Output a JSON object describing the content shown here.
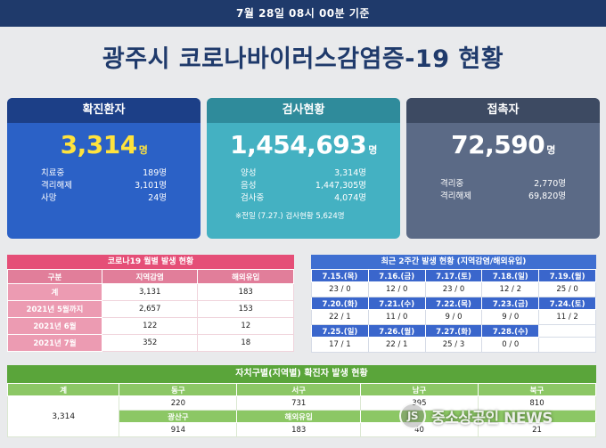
{
  "header": {
    "date_text": "7월 28일 08시 00분 기준",
    "title": "광주시 코로나바이러스감염증-19 현황"
  },
  "cards": {
    "confirmed": {
      "label": "확진환자",
      "value": "3,314",
      "unit": "명",
      "rows": [
        {
          "k": "치료중",
          "v": "189명"
        },
        {
          "k": "격리해제",
          "v": "3,101명"
        },
        {
          "k": "사망",
          "v": "24명"
        }
      ]
    },
    "tests": {
      "label": "검사현황",
      "value": "1,454,693",
      "unit": "명",
      "rows": [
        {
          "k": "양성",
          "v": "3,314명"
        },
        {
          "k": "음성",
          "v": "1,447,305명"
        },
        {
          "k": "검사중",
          "v": "4,074명"
        }
      ],
      "note": "※전일 (7.27.) 검사현황 5,624명"
    },
    "contacts": {
      "label": "접촉자",
      "value": "72,590",
      "unit": "명",
      "rows": [
        {
          "k": "격리중",
          "v": "2,770명"
        },
        {
          "k": "격리해제",
          "v": "69,820명"
        }
      ]
    }
  },
  "monthly": {
    "caption": "코로나19 월별 발생 현황",
    "headers": [
      "구분",
      "지역감염",
      "해외유입"
    ],
    "rows": [
      [
        "계",
        "3,131",
        "183"
      ],
      [
        "2021년 5월까지",
        "2,657",
        "153"
      ],
      [
        "2021년 6월",
        "122",
        "12"
      ],
      [
        "2021년 7월",
        "352",
        "18"
      ]
    ]
  },
  "recent": {
    "caption": "최근 2주간 발생 현황 (지역감염/해외유입)",
    "weeks": [
      {
        "dates": [
          "7.15.(목)",
          "7.16.(금)",
          "7.17.(토)",
          "7.18.(일)",
          "7.19.(월)"
        ],
        "values": [
          "23 / 0",
          "12 / 0",
          "23 / 0",
          "12 / 2",
          "25 / 0"
        ]
      },
      {
        "dates": [
          "7.20.(화)",
          "7.21.(수)",
          "7.22.(목)",
          "7.23.(금)",
          "7.24.(토)"
        ],
        "values": [
          "22 / 1",
          "11 / 0",
          "9 / 0",
          "9 / 0",
          "11 / 2"
        ]
      },
      {
        "dates": [
          "7.25.(일)",
          "7.26.(월)",
          "7.27.(화)",
          "7.28.(수)",
          ""
        ],
        "values": [
          "17 / 1",
          "22 / 1",
          "25 / 3",
          "0 / 0",
          ""
        ]
      }
    ]
  },
  "districts": {
    "caption": "자치구별(지역별) 확진자 발생 현황",
    "total_label": "계",
    "total_value": "3,314",
    "headers1": [
      "동구",
      "서구",
      "남구",
      "북구"
    ],
    "values1": [
      "220",
      "731",
      "395",
      "810"
    ],
    "headers2": [
      "광산구",
      "해외유입",
      "",
      ""
    ],
    "values2": [
      "914",
      "183",
      "40",
      "21"
    ]
  },
  "watermark": {
    "text": "중소상공인 NEWS"
  }
}
